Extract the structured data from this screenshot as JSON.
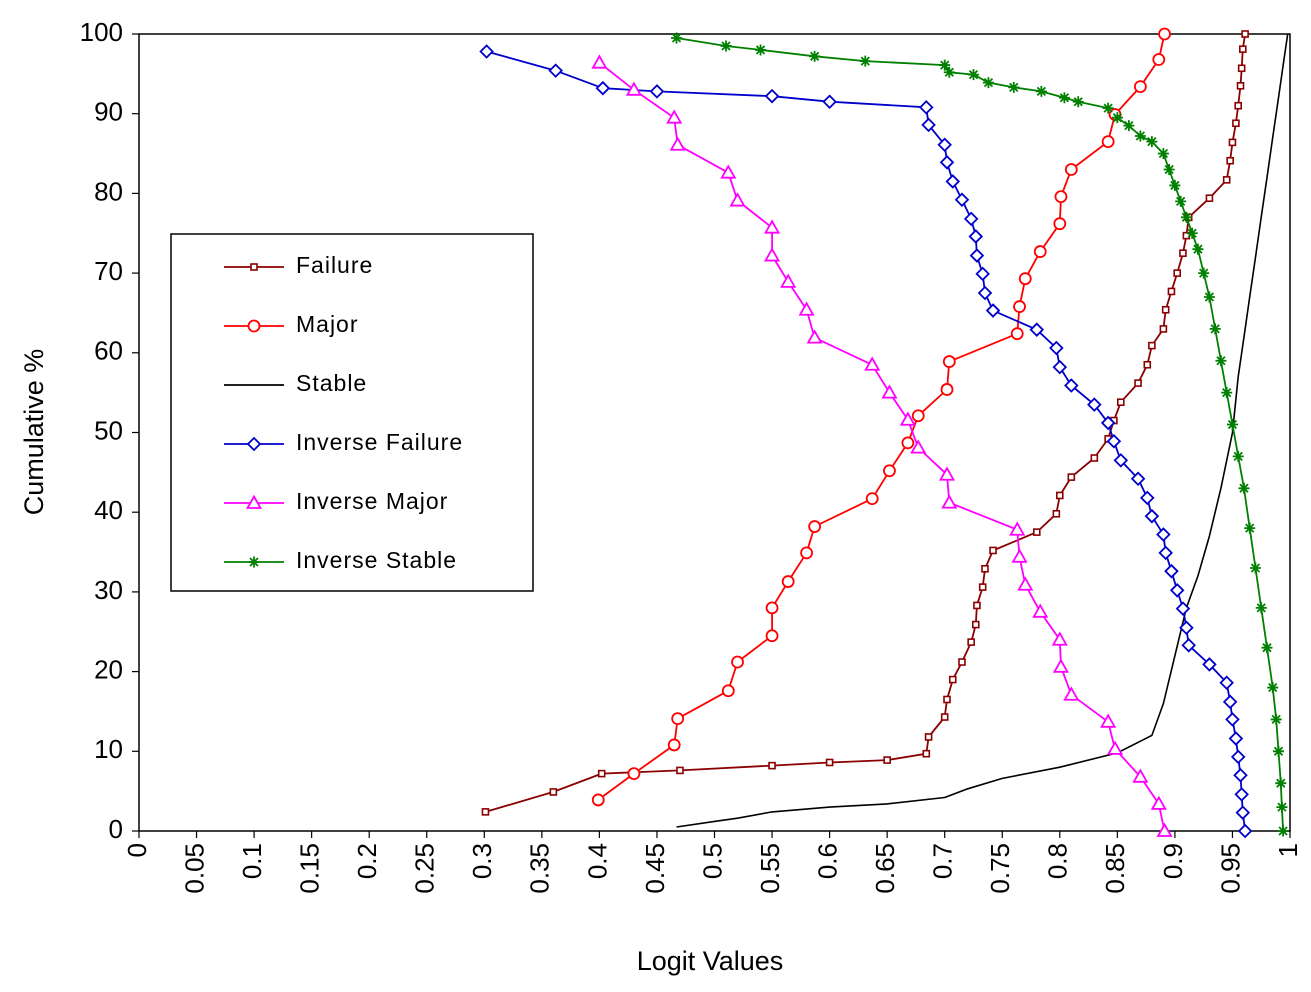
{
  "chart_data": {
    "type": "line",
    "title": "",
    "xlabel": "Logit Values",
    "ylabel": "Cumulative %",
    "xlim": [
      0,
      1
    ],
    "ylim": [
      0,
      100
    ],
    "x_ticks": [
      "0",
      "0.05",
      "0.1",
      "0.15",
      "0.2",
      "0.25",
      "0.3",
      "0.35",
      "0.4",
      "0.45",
      "0.5",
      "0.55",
      "0.6",
      "0.65",
      "0.7",
      "0.75",
      "0.8",
      "0.85",
      "0.9",
      "0.95",
      "1"
    ],
    "y_ticks": [
      "0",
      "10",
      "20",
      "30",
      "40",
      "50",
      "60",
      "70",
      "80",
      "90",
      "100"
    ],
    "grid": false,
    "legend_position": "left-center",
    "series": [
      {
        "name": "Failure",
        "color": "#8B0000",
        "marker": "square",
        "points": [
          [
            0.301,
            2.4
          ],
          [
            0.36,
            4.9
          ],
          [
            0.402,
            7.2
          ],
          [
            0.47,
            7.6
          ],
          [
            0.55,
            8.2
          ],
          [
            0.6,
            8.6
          ],
          [
            0.65,
            8.9
          ],
          [
            0.684,
            9.7
          ],
          [
            0.686,
            11.8
          ],
          [
            0.7,
            14.3
          ],
          [
            0.702,
            16.5
          ],
          [
            0.707,
            19
          ],
          [
            0.715,
            21.2
          ],
          [
            0.723,
            23.7
          ],
          [
            0.727,
            25.9
          ],
          [
            0.728,
            28.3
          ],
          [
            0.733,
            30.6
          ],
          [
            0.735,
            32.9
          ],
          [
            0.742,
            35.2
          ],
          [
            0.78,
            37.5
          ],
          [
            0.797,
            39.8
          ],
          [
            0.8,
            42.1
          ],
          [
            0.81,
            44.4
          ],
          [
            0.83,
            46.8
          ],
          [
            0.842,
            49.2
          ],
          [
            0.847,
            51.5
          ],
          [
            0.853,
            53.8
          ],
          [
            0.868,
            56.2
          ],
          [
            0.876,
            58.5
          ],
          [
            0.88,
            60.9
          ],
          [
            0.89,
            63
          ],
          [
            0.892,
            65.4
          ],
          [
            0.897,
            67.7
          ],
          [
            0.902,
            70
          ],
          [
            0.907,
            72.5
          ],
          [
            0.91,
            74.7
          ],
          [
            0.912,
            77
          ],
          [
            0.93,
            79.4
          ],
          [
            0.945,
            81.7
          ],
          [
            0.948,
            84.1
          ],
          [
            0.95,
            86.4
          ],
          [
            0.953,
            88.8
          ],
          [
            0.955,
            91
          ],
          [
            0.957,
            93.5
          ],
          [
            0.958,
            95.7
          ],
          [
            0.959,
            98.1
          ],
          [
            0.961,
            100
          ]
        ]
      },
      {
        "name": "Major",
        "color": "#FF0000",
        "marker": "circle",
        "points": [
          [
            0.399,
            3.9
          ],
          [
            0.43,
            7.2
          ],
          [
            0.465,
            10.8
          ],
          [
            0.468,
            14.1
          ],
          [
            0.512,
            17.6
          ],
          [
            0.52,
            21.2
          ],
          [
            0.55,
            24.5
          ],
          [
            0.55,
            28
          ],
          [
            0.564,
            31.3
          ],
          [
            0.58,
            34.9
          ],
          [
            0.587,
            38.2
          ],
          [
            0.637,
            41.7
          ],
          [
            0.652,
            45.2
          ],
          [
            0.668,
            48.7
          ],
          [
            0.677,
            52.1
          ],
          [
            0.702,
            55.4
          ],
          [
            0.704,
            58.9
          ],
          [
            0.763,
            62.4
          ],
          [
            0.765,
            65.8
          ],
          [
            0.77,
            69.3
          ],
          [
            0.783,
            72.7
          ],
          [
            0.8,
            76.2
          ],
          [
            0.801,
            79.6
          ],
          [
            0.81,
            83
          ],
          [
            0.842,
            86.5
          ],
          [
            0.848,
            89.9
          ],
          [
            0.87,
            93.4
          ],
          [
            0.886,
            96.8
          ],
          [
            0.891,
            100
          ]
        ]
      },
      {
        "name": "Stable",
        "color": "#000000",
        "marker": "none",
        "points": [
          [
            0.467,
            0.5
          ],
          [
            0.5,
            1.2
          ],
          [
            0.52,
            1.6
          ],
          [
            0.55,
            2.4
          ],
          [
            0.6,
            3
          ],
          [
            0.65,
            3.4
          ],
          [
            0.7,
            4.2
          ],
          [
            0.72,
            5.3
          ],
          [
            0.75,
            6.6
          ],
          [
            0.8,
            8
          ],
          [
            0.85,
            9.8
          ],
          [
            0.88,
            12
          ],
          [
            0.89,
            16
          ],
          [
            0.9,
            22
          ],
          [
            0.91,
            28
          ],
          [
            0.92,
            32
          ],
          [
            0.93,
            37
          ],
          [
            0.94,
            43
          ],
          [
            0.95,
            50
          ],
          [
            0.955,
            57
          ],
          [
            0.96,
            62
          ],
          [
            0.965,
            67
          ],
          [
            0.97,
            72
          ],
          [
            0.975,
            77
          ],
          [
            0.98,
            82
          ],
          [
            0.985,
            87
          ],
          [
            0.99,
            92
          ],
          [
            0.995,
            97
          ],
          [
            0.998,
            100
          ]
        ]
      },
      {
        "name": "Inverse Failure",
        "color": "#0000CC",
        "marker": "diamond",
        "points": [
          [
            0.302,
            97.8
          ],
          [
            0.362,
            95.4
          ],
          [
            0.403,
            93.2
          ],
          [
            0.45,
            92.8
          ],
          [
            0.55,
            92.2
          ],
          [
            0.6,
            91.5
          ],
          [
            0.684,
            90.8
          ],
          [
            0.686,
            88.6
          ],
          [
            0.7,
            86.1
          ],
          [
            0.702,
            83.9
          ],
          [
            0.707,
            81.5
          ],
          [
            0.715,
            79.2
          ],
          [
            0.723,
            76.8
          ],
          [
            0.727,
            74.6
          ],
          [
            0.728,
            72.2
          ],
          [
            0.733,
            69.9
          ],
          [
            0.735,
            67.5
          ],
          [
            0.742,
            65.3
          ],
          [
            0.78,
            62.9
          ],
          [
            0.797,
            60.6
          ],
          [
            0.8,
            58.2
          ],
          [
            0.81,
            55.9
          ],
          [
            0.83,
            53.5
          ],
          [
            0.842,
            51.2
          ],
          [
            0.847,
            48.9
          ],
          [
            0.853,
            46.5
          ],
          [
            0.868,
            44.2
          ],
          [
            0.876,
            41.8
          ],
          [
            0.88,
            39.5
          ],
          [
            0.89,
            37.2
          ],
          [
            0.892,
            34.9
          ],
          [
            0.897,
            32.6
          ],
          [
            0.902,
            30.2
          ],
          [
            0.907,
            27.9
          ],
          [
            0.91,
            25.5
          ],
          [
            0.912,
            23.3
          ],
          [
            0.93,
            20.9
          ],
          [
            0.945,
            18.6
          ],
          [
            0.948,
            16.2
          ],
          [
            0.95,
            14
          ],
          [
            0.953,
            11.6
          ],
          [
            0.955,
            9.3
          ],
          [
            0.957,
            7
          ],
          [
            0.958,
            4.6
          ],
          [
            0.959,
            2.3
          ],
          [
            0.961,
            0
          ]
        ]
      },
      {
        "name": "Inverse Major",
        "color": "#FF00FF",
        "marker": "triangle",
        "points": [
          [
            0.4,
            96.4
          ],
          [
            0.43,
            93
          ],
          [
            0.465,
            89.5
          ],
          [
            0.468,
            86.1
          ],
          [
            0.512,
            82.6
          ],
          [
            0.52,
            79.1
          ],
          [
            0.55,
            75.7
          ],
          [
            0.55,
            72.2
          ],
          [
            0.564,
            68.9
          ],
          [
            0.58,
            65.4
          ],
          [
            0.587,
            61.9
          ],
          [
            0.637,
            58.5
          ],
          [
            0.652,
            55
          ],
          [
            0.668,
            51.6
          ],
          [
            0.677,
            48.1
          ],
          [
            0.702,
            44.7
          ],
          [
            0.704,
            41.2
          ],
          [
            0.763,
            37.8
          ],
          [
            0.765,
            34.4
          ],
          [
            0.77,
            30.9
          ],
          [
            0.783,
            27.5
          ],
          [
            0.8,
            24
          ],
          [
            0.801,
            20.6
          ],
          [
            0.81,
            17.1
          ],
          [
            0.842,
            13.7
          ],
          [
            0.848,
            10.3
          ],
          [
            0.87,
            6.8
          ],
          [
            0.886,
            3.4
          ],
          [
            0.891,
            0
          ]
        ]
      },
      {
        "name": "Inverse Stable",
        "color": "#008000",
        "marker": "asterisk",
        "points": [
          [
            0.467,
            99.5
          ],
          [
            0.51,
            98.5
          ],
          [
            0.54,
            98
          ],
          [
            0.587,
            97.2
          ],
          [
            0.631,
            96.6
          ],
          [
            0.7,
            96.1
          ],
          [
            0.704,
            95.2
          ],
          [
            0.725,
            94.9
          ],
          [
            0.738,
            93.9
          ],
          [
            0.76,
            93.3
          ],
          [
            0.784,
            92.8
          ],
          [
            0.804,
            92
          ],
          [
            0.816,
            91.5
          ],
          [
            0.842,
            90.7
          ],
          [
            0.85,
            89.5
          ],
          [
            0.86,
            88.5
          ],
          [
            0.87,
            87.2
          ],
          [
            0.88,
            86.5
          ],
          [
            0.89,
            85
          ],
          [
            0.895,
            83
          ],
          [
            0.9,
            81
          ],
          [
            0.905,
            79
          ],
          [
            0.91,
            77
          ],
          [
            0.915,
            75
          ],
          [
            0.92,
            73
          ],
          [
            0.925,
            70
          ],
          [
            0.93,
            67
          ],
          [
            0.935,
            63
          ],
          [
            0.94,
            59
          ],
          [
            0.945,
            55
          ],
          [
            0.95,
            51
          ],
          [
            0.955,
            47
          ],
          [
            0.96,
            43
          ],
          [
            0.965,
            38
          ],
          [
            0.97,
            33
          ],
          [
            0.975,
            28
          ],
          [
            0.98,
            23
          ],
          [
            0.985,
            18
          ],
          [
            0.988,
            14
          ],
          [
            0.99,
            10
          ],
          [
            0.992,
            6
          ],
          [
            0.993,
            3
          ],
          [
            0.994,
            0
          ]
        ]
      }
    ]
  }
}
